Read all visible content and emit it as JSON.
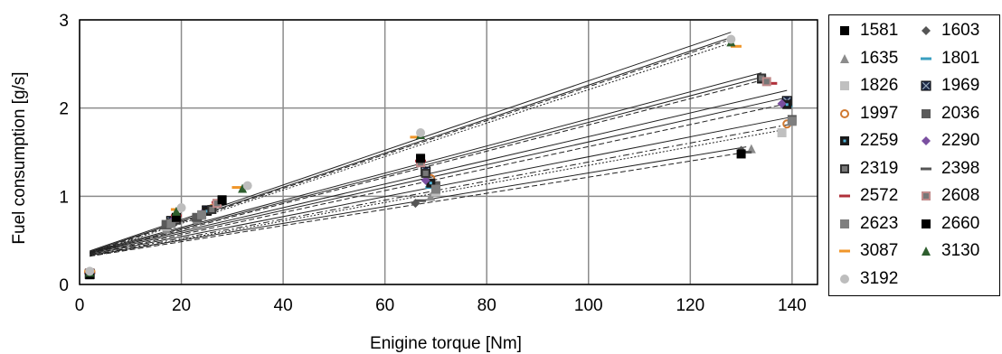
{
  "chart_data": {
    "type": "scatter",
    "title": "",
    "xlabel": "Enigine torque [Nm]",
    "ylabel": "Fuel consumption [g/s]",
    "xlim": [
      0,
      145
    ],
    "ylim": [
      0,
      3
    ],
    "xticks": [
      "0",
      "20",
      "40",
      "60",
      "80",
      "100",
      "120",
      "140"
    ],
    "yticks": [
      "0",
      "1",
      "2",
      "3"
    ],
    "grid": true,
    "legend_placement": "right",
    "series": [
      {
        "name": "1581",
        "marker": "square",
        "color": "#000000",
        "points": [
          [
            2,
            0.12
          ],
          [
            19,
            0.75
          ],
          [
            28,
            0.95
          ],
          [
            67,
            1.42
          ],
          [
            134,
            2.33
          ]
        ]
      },
      {
        "name": "1603",
        "marker": "diamond",
        "color": "#555555",
        "points": [
          [
            2,
            0.13
          ],
          [
            17,
            0.62
          ],
          [
            23,
            0.72
          ],
          [
            66,
            0.92
          ],
          [
            130,
            1.52
          ]
        ]
      },
      {
        "name": "1635",
        "marker": "triangle",
        "color": "#8c8c8c",
        "points": [
          [
            2,
            0.12
          ],
          [
            17,
            0.63
          ],
          [
            23,
            0.74
          ],
          [
            69,
            1.0
          ],
          [
            132,
            1.54
          ]
        ]
      },
      {
        "name": "1801",
        "marker": "dash",
        "color": "#3a9fc0",
        "points": [
          [
            2,
            0.14
          ],
          [
            18,
            0.7
          ],
          [
            25,
            0.82
          ],
          [
            69,
            1.1
          ],
          [
            139,
            2.02
          ]
        ]
      },
      {
        "name": "1826",
        "marker": "square",
        "color": "#c0c0c0",
        "points": [
          [
            2,
            0.13
          ],
          [
            17,
            0.66
          ],
          [
            24,
            0.78
          ],
          [
            70,
            1.05
          ],
          [
            138,
            1.72
          ]
        ]
      },
      {
        "name": "1969",
        "marker": "xsquare",
        "color": "#1f2b4a",
        "points": [
          [
            2,
            0.12
          ],
          [
            18,
            0.72
          ],
          [
            25,
            0.84
          ],
          [
            68,
            1.28
          ],
          [
            139,
            2.08
          ]
        ]
      },
      {
        "name": "1997",
        "marker": "circle-open",
        "color": "#d07830",
        "points": [
          [
            2,
            0.14
          ],
          [
            19,
            0.74
          ],
          [
            26,
            0.86
          ],
          [
            69,
            1.2
          ],
          [
            139,
            1.82
          ]
        ]
      },
      {
        "name": "2036",
        "marker": "square",
        "color": "#5a5a5a",
        "points": [
          [
            2,
            0.12
          ],
          [
            17,
            0.68
          ],
          [
            23,
            0.76
          ],
          [
            70,
            1.12
          ],
          [
            140,
            1.87
          ]
        ]
      },
      {
        "name": "2259",
        "marker": "square-dot",
        "color": "#2a6f9a",
        "points": [
          [
            2,
            0.13
          ],
          [
            18,
            0.7
          ],
          [
            25,
            0.83
          ],
          [
            69,
            1.15
          ],
          [
            139,
            2.04
          ]
        ]
      },
      {
        "name": "2290",
        "marker": "diamond",
        "color": "#7a4fa0",
        "points": [
          [
            2,
            0.13
          ],
          [
            18,
            0.71
          ],
          [
            24,
            0.8
          ],
          [
            68,
            1.18
          ],
          [
            138,
            2.05
          ]
        ]
      },
      {
        "name": "2319",
        "marker": "square-open",
        "color": "#333333",
        "points": [
          [
            2,
            0.12
          ],
          [
            19,
            0.73
          ],
          [
            26,
            0.85
          ],
          [
            68,
            1.26
          ],
          [
            134,
            2.34
          ]
        ]
      },
      {
        "name": "2398",
        "marker": "dash",
        "color": "#555555",
        "points": [
          [
            2,
            0.13
          ],
          [
            17,
            0.64
          ],
          [
            23,
            0.73
          ],
          [
            67,
            0.95
          ],
          [
            131,
            1.5
          ]
        ]
      },
      {
        "name": "2572",
        "marker": "dash",
        "color": "#b0303a",
        "points": [
          [
            2,
            0.14
          ],
          [
            19,
            0.78
          ],
          [
            27,
            0.93
          ],
          [
            67,
            1.4
          ],
          [
            136,
            2.28
          ]
        ]
      },
      {
        "name": "2608",
        "marker": "square-open",
        "color": "#c08a8a",
        "points": [
          [
            2,
            0.13
          ],
          [
            19,
            0.76
          ],
          [
            27,
            0.92
          ],
          [
            67,
            1.38
          ],
          [
            135,
            2.3
          ]
        ]
      },
      {
        "name": "2623",
        "marker": "square",
        "color": "#7f7f7f",
        "points": [
          [
            2,
            0.12
          ],
          [
            18,
            0.69
          ],
          [
            24,
            0.79
          ],
          [
            70,
            1.08
          ],
          [
            140,
            1.85
          ]
        ]
      },
      {
        "name": "2660",
        "marker": "square",
        "color": "#000000",
        "points": [
          [
            2,
            0.11
          ],
          [
            19,
            0.76
          ],
          [
            28,
            0.96
          ],
          [
            67,
            1.43
          ],
          [
            130,
            1.48
          ]
        ]
      },
      {
        "name": "3087",
        "marker": "dash",
        "color": "#f0962a",
        "points": [
          [
            2,
            0.15
          ],
          [
            19,
            0.85
          ],
          [
            31,
            1.1
          ],
          [
            66,
            1.67
          ],
          [
            129,
            2.7
          ]
        ]
      },
      {
        "name": "3130",
        "marker": "triangle",
        "color": "#2e5e2e",
        "points": [
          [
            2,
            0.14
          ],
          [
            19,
            0.83
          ],
          [
            32,
            1.09
          ],
          [
            67,
            1.7
          ],
          [
            128,
            2.75
          ]
        ]
      },
      {
        "name": "3192",
        "marker": "circle",
        "color": "#bdbdbd",
        "points": [
          [
            2,
            0.15
          ],
          [
            20,
            0.87
          ],
          [
            33,
            1.12
          ],
          [
            67,
            1.72
          ],
          [
            128,
            2.78
          ]
        ]
      }
    ],
    "trendlines": [
      {
        "x": [
          2,
          128
        ],
        "y": [
          0.38,
          2.86
        ],
        "style": "solid"
      },
      {
        "x": [
          2,
          128
        ],
        "y": [
          0.37,
          2.8
        ],
        "style": "solid"
      },
      {
        "x": [
          2,
          127
        ],
        "y": [
          0.36,
          2.76
        ],
        "style": "dashed"
      },
      {
        "x": [
          2,
          127
        ],
        "y": [
          0.35,
          2.72
        ],
        "style": "dotted"
      },
      {
        "x": [
          2,
          134
        ],
        "y": [
          0.37,
          2.4
        ],
        "style": "solid"
      },
      {
        "x": [
          2,
          134
        ],
        "y": [
          0.36,
          2.35
        ],
        "style": "solid"
      },
      {
        "x": [
          2,
          133
        ],
        "y": [
          0.35,
          2.3
        ],
        "style": "dashed"
      },
      {
        "x": [
          2,
          139
        ],
        "y": [
          0.36,
          2.2
        ],
        "style": "solid"
      },
      {
        "x": [
          2,
          139
        ],
        "y": [
          0.35,
          2.12
        ],
        "style": "solid"
      },
      {
        "x": [
          2,
          139
        ],
        "y": [
          0.34,
          2.05
        ],
        "style": "dashed"
      },
      {
        "x": [
          2,
          140
        ],
        "y": [
          0.34,
          1.9
        ],
        "style": "solid"
      },
      {
        "x": [
          2,
          140
        ],
        "y": [
          0.33,
          1.82
        ],
        "style": "dashdot"
      },
      {
        "x": [
          2,
          138
        ],
        "y": [
          0.32,
          1.75
        ],
        "style": "dotted"
      },
      {
        "x": [
          2,
          131
        ],
        "y": [
          0.33,
          1.56
        ],
        "style": "solid"
      },
      {
        "x": [
          2,
          131
        ],
        "y": [
          0.32,
          1.5
        ],
        "style": "dashed"
      }
    ]
  }
}
